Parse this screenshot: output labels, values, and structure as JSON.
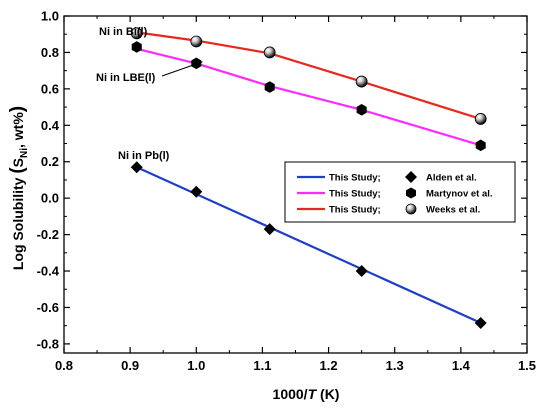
{
  "chart_data": {
    "type": "line",
    "xlabel_prefix": "1000/",
    "xlabel_var": "T",
    "xlabel_suffix": " (K)",
    "ylabel_main": "Log Solubility ",
    "ylabel_paren_open": "(",
    "ylabel_S": "S",
    "ylabel_sub": "Ni",
    "ylabel_rest": ", wt%",
    "ylabel_paren_close": ")",
    "xlim": [
      0.8,
      1.5
    ],
    "ylim": [
      -0.85,
      1.0
    ],
    "xticks": [
      "0.8",
      "0.9",
      "1.0",
      "1.1",
      "1.2",
      "1.3",
      "1.4",
      "1.5"
    ],
    "yticks": [
      "1.0",
      "0.8",
      "0.6",
      "0.4",
      "0.2",
      "0.0",
      "-0.2",
      "-0.4",
      "-0.6",
      "-0.8"
    ],
    "xtick_values": [
      0.8,
      0.9,
      1.0,
      1.1,
      1.2,
      1.3,
      1.4,
      1.5
    ],
    "ytick_values": [
      1.0,
      0.8,
      0.6,
      0.4,
      0.2,
      0.0,
      -0.2,
      -0.4,
      -0.6,
      -0.8
    ],
    "grid": false,
    "legend_position": "center-right",
    "series": [
      {
        "name": "Ni in Bi(l)",
        "color": "#e8281f",
        "line_x": [
          0.91,
          1.0,
          1.111,
          1.25,
          1.43
        ],
        "line_y": [
          0.91,
          0.865,
          0.795,
          0.64,
          0.435
        ],
        "marker": "sphere",
        "points_x": [
          0.91,
          1.0,
          1.111,
          1.25,
          1.43
        ],
        "points_y": [
          0.905,
          0.86,
          0.8,
          0.64,
          0.435
        ]
      },
      {
        "name": "Ni in LBE(l)",
        "color": "#ff2cff",
        "line_x": [
          0.91,
          1.0,
          1.111,
          1.25,
          1.43
        ],
        "line_y": [
          0.82,
          0.74,
          0.615,
          0.485,
          0.29
        ],
        "marker": "hexagon",
        "points_x": [
          0.91,
          1.0,
          1.111,
          1.25,
          1.43
        ],
        "points_y": [
          0.83,
          0.74,
          0.61,
          0.485,
          0.29
        ]
      },
      {
        "name": "Ni in Pb(l)",
        "color": "#1f3fc8",
        "line_x": [
          0.91,
          1.43
        ],
        "line_y": [
          0.17,
          -0.685
        ],
        "marker": "diamond",
        "points_x": [
          0.91,
          1.0,
          1.111,
          1.25,
          1.43
        ],
        "points_y": [
          0.17,
          0.035,
          -0.17,
          -0.4,
          -0.685
        ]
      }
    ],
    "annotations": {
      "bi": "Ni in Bi(l)",
      "lbe": "Ni in LBE(l)",
      "pb": "Ni in Pb(l)"
    },
    "legend": [
      {
        "study": "This Study;",
        "source": "Alden et al.",
        "color": "#1f3fc8",
        "marker": "diamond"
      },
      {
        "study": "This Study;",
        "source": "Martynov et al.",
        "color": "#ff2cff",
        "marker": "hexagon"
      },
      {
        "study": "This Study;",
        "source": "Weeks et al.",
        "color": "#e8281f",
        "marker": "sphere"
      }
    ]
  }
}
